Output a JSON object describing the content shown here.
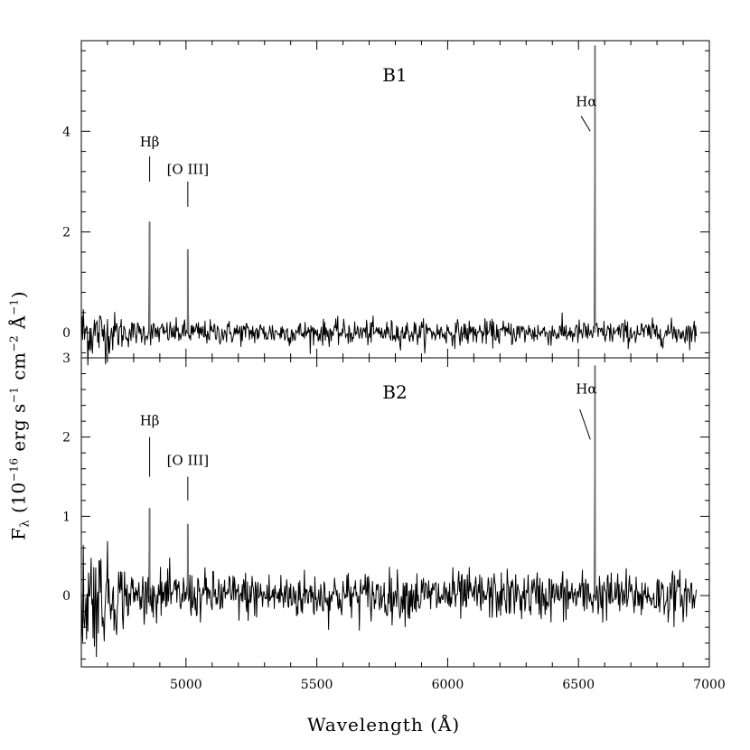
{
  "chart_data": {
    "type": "line",
    "xlabel": "Wavelength (Å)",
    "ylabel_parts": {
      "prefix": "F",
      "sub": "λ",
      "unit_open": " (10",
      "exp1": "−16",
      "mid1": " erg s",
      "exp2": "−1",
      "mid2": " cm",
      "exp3": "−2",
      "mid3": " Å",
      "exp4": "−1",
      "close": ")"
    },
    "xlim": [
      4600,
      7000
    ],
    "xticks": [
      5000,
      5500,
      6000,
      6500,
      7000
    ],
    "grid": false,
    "panels": [
      {
        "name": "B1",
        "ylim": [
          -0.5,
          5.8
        ],
        "yticks": [
          0,
          2,
          4
        ],
        "noise_sigma": 0.12,
        "lines": [
          {
            "label": "Hβ",
            "wavelength": 4861,
            "peak": 2.2
          },
          {
            "label": "[O III]",
            "wavelength": 5007,
            "peak": 1.65
          },
          {
            "label": "Hα",
            "wavelength": 6563,
            "peak": 5.7
          }
        ],
        "annotations": [
          {
            "text": "Hβ",
            "x": 4861,
            "y": 3.7
          },
          {
            "text": "[O III]",
            "x": 5007,
            "y": 3.15
          },
          {
            "text": "Hα",
            "x": 6530,
            "y": 4.5
          }
        ],
        "label_ticks": [
          {
            "x1": 4861,
            "y1": 3.5,
            "x2": 4861,
            "y2": 3.0
          },
          {
            "x1": 5007,
            "y1": 3.0,
            "x2": 5007,
            "y2": 2.5
          },
          {
            "x1": 6510,
            "y1": 4.3,
            "x2": 6545,
            "y2": 4.0
          }
        ]
      },
      {
        "name": "B2",
        "ylim": [
          -0.9,
          3.0
        ],
        "yticks": [
          0,
          1,
          2,
          3
        ],
        "noise_sigma": 0.15,
        "lines": [
          {
            "label": "Hβ",
            "wavelength": 4861,
            "peak": 1.1
          },
          {
            "label": "[O III]",
            "wavelength": 5007,
            "peak": 0.9
          },
          {
            "label": "Hα",
            "wavelength": 6563,
            "peak": 2.9
          }
        ],
        "annotations": [
          {
            "text": "Hβ",
            "x": 4861,
            "y": 2.15
          },
          {
            "text": "[O III]",
            "x": 5007,
            "y": 1.65
          },
          {
            "text": "Hα",
            "x": 6530,
            "y": 2.55
          }
        ],
        "label_ticks": [
          {
            "x1": 4861,
            "y1": 2.0,
            "x2": 4861,
            "y2": 1.5
          },
          {
            "x1": 5007,
            "y1": 1.5,
            "x2": 5007,
            "y2": 1.2
          },
          {
            "x1": 6505,
            "y1": 2.35,
            "x2": 6545,
            "y2": 1.97
          }
        ]
      }
    ]
  }
}
